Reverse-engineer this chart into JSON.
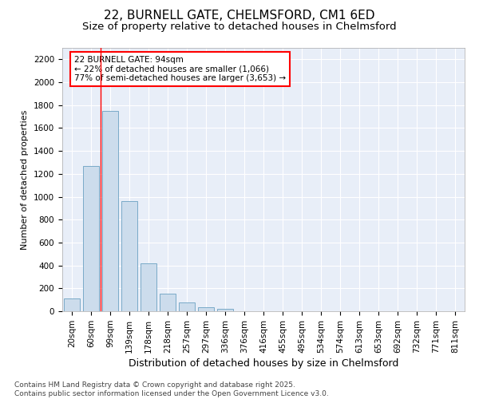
{
  "title1": "22, BURNELL GATE, CHELMSFORD, CM1 6ED",
  "title2": "Size of property relative to detached houses in Chelmsford",
  "xlabel": "Distribution of detached houses by size in Chelmsford",
  "ylabel": "Number of detached properties",
  "categories": [
    "20sqm",
    "60sqm",
    "99sqm",
    "139sqm",
    "178sqm",
    "218sqm",
    "257sqm",
    "297sqm",
    "336sqm",
    "376sqm",
    "416sqm",
    "455sqm",
    "495sqm",
    "534sqm",
    "574sqm",
    "613sqm",
    "653sqm",
    "692sqm",
    "732sqm",
    "771sqm",
    "811sqm"
  ],
  "values": [
    110,
    1270,
    1750,
    960,
    415,
    150,
    75,
    35,
    20,
    0,
    0,
    0,
    0,
    0,
    0,
    0,
    0,
    0,
    0,
    0,
    0
  ],
  "bar_color": "#ccdcec",
  "bar_edge_color": "#7aaac8",
  "annotation_box_text": "22 BURNELL GATE: 94sqm\n← 22% of detached houses are smaller (1,066)\n77% of semi-detached houses are larger (3,653) →",
  "red_line_x": 2.5,
  "ylim": [
    0,
    2300
  ],
  "yticks": [
    0,
    200,
    400,
    600,
    800,
    1000,
    1200,
    1400,
    1600,
    1800,
    2000,
    2200
  ],
  "background_color": "#e8eef8",
  "grid_color": "#ffffff",
  "footnote": "Contains HM Land Registry data © Crown copyright and database right 2025.\nContains public sector information licensed under the Open Government Licence v3.0.",
  "title1_fontsize": 11,
  "title2_fontsize": 9.5,
  "xlabel_fontsize": 9,
  "ylabel_fontsize": 8,
  "tick_fontsize": 7.5,
  "annotation_fontsize": 7.5,
  "footnote_fontsize": 6.5
}
